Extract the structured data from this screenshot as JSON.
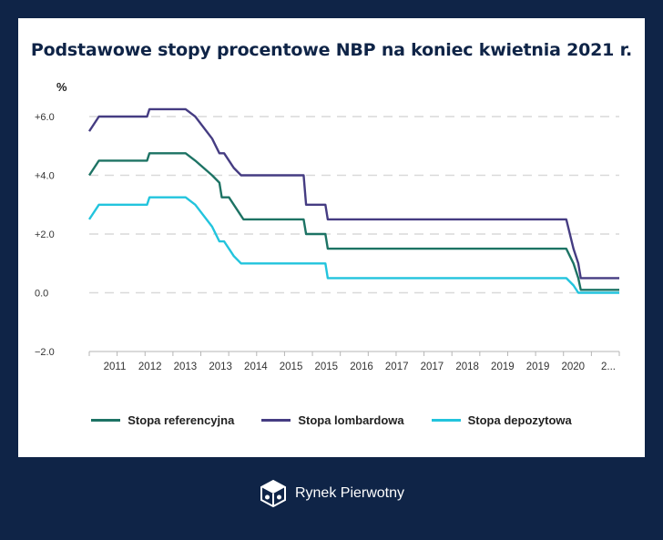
{
  "chart_data": {
    "type": "line",
    "title": "Podstawowe stopy procentowe NBP na koniec kwietnia 2021 r.",
    "ylabel": "%",
    "ylim": [
      -2.0,
      6.0
    ],
    "y_ticks": [
      "+6.0",
      "+4.0",
      "+2.0",
      "0.0",
      "−2.0"
    ],
    "y_tick_values": [
      6,
      4,
      2,
      0,
      -2
    ],
    "x_ticks": [
      "2011",
      "2012",
      "2013",
      "2013",
      "2014",
      "2015",
      "2015",
      "2016",
      "2017",
      "2017",
      "2018",
      "2019",
      "2019",
      "2020",
      "2..."
    ],
    "xlim": [
      2010.3,
      2021.3
    ],
    "grid": true,
    "legend_position": "bottom",
    "series": [
      {
        "name": "Stopa referencyjna",
        "color": "#1d7364",
        "points": [
          [
            2010.3,
            4.0
          ],
          [
            2010.5,
            4.5
          ],
          [
            2011.25,
            4.5
          ],
          [
            2011.5,
            4.5
          ],
          [
            2011.55,
            4.75
          ],
          [
            2012.3,
            4.75
          ],
          [
            2012.5,
            4.5
          ],
          [
            2012.85,
            4.0
          ],
          [
            2013.0,
            3.75
          ],
          [
            2013.05,
            3.25
          ],
          [
            2013.2,
            3.25
          ],
          [
            2013.4,
            2.75
          ],
          [
            2013.5,
            2.5
          ],
          [
            2014.75,
            2.5
          ],
          [
            2014.8,
            2.0
          ],
          [
            2015.2,
            2.0
          ],
          [
            2015.25,
            1.5
          ],
          [
            2020.2,
            1.5
          ],
          [
            2020.35,
            1.0
          ],
          [
            2020.45,
            0.5
          ],
          [
            2020.5,
            0.1
          ],
          [
            2021.3,
            0.1
          ]
        ]
      },
      {
        "name": "Stopa lombardowa",
        "color": "#453c82",
        "points": [
          [
            2010.3,
            5.5
          ],
          [
            2010.5,
            6.0
          ],
          [
            2011.25,
            6.0
          ],
          [
            2011.5,
            6.0
          ],
          [
            2011.55,
            6.25
          ],
          [
            2012.3,
            6.25
          ],
          [
            2012.5,
            6.0
          ],
          [
            2012.85,
            5.25
          ],
          [
            2013.0,
            4.75
          ],
          [
            2013.1,
            4.75
          ],
          [
            2013.3,
            4.25
          ],
          [
            2013.45,
            4.0
          ],
          [
            2014.75,
            4.0
          ],
          [
            2014.8,
            3.0
          ],
          [
            2015.2,
            3.0
          ],
          [
            2015.25,
            2.5
          ],
          [
            2020.2,
            2.5
          ],
          [
            2020.35,
            1.5
          ],
          [
            2020.45,
            1.0
          ],
          [
            2020.5,
            0.5
          ],
          [
            2021.3,
            0.5
          ]
        ]
      },
      {
        "name": "Stopa depozytowa",
        "color": "#22c4dd",
        "points": [
          [
            2010.3,
            2.5
          ],
          [
            2010.5,
            3.0
          ],
          [
            2011.25,
            3.0
          ],
          [
            2011.5,
            3.0
          ],
          [
            2011.55,
            3.25
          ],
          [
            2012.3,
            3.25
          ],
          [
            2012.5,
            3.0
          ],
          [
            2012.85,
            2.25
          ],
          [
            2013.0,
            1.75
          ],
          [
            2013.1,
            1.75
          ],
          [
            2013.3,
            1.25
          ],
          [
            2013.45,
            1.0
          ],
          [
            2014.75,
            1.0
          ],
          [
            2015.2,
            1.0
          ],
          [
            2015.25,
            0.5
          ],
          [
            2020.2,
            0.5
          ],
          [
            2020.35,
            0.25
          ],
          [
            2020.45,
            0.0
          ],
          [
            2021.3,
            0.0
          ]
        ]
      }
    ]
  },
  "footer": {
    "brand": "Rynek Pierwotny",
    "logo_icon": "cube-logo-icon"
  }
}
